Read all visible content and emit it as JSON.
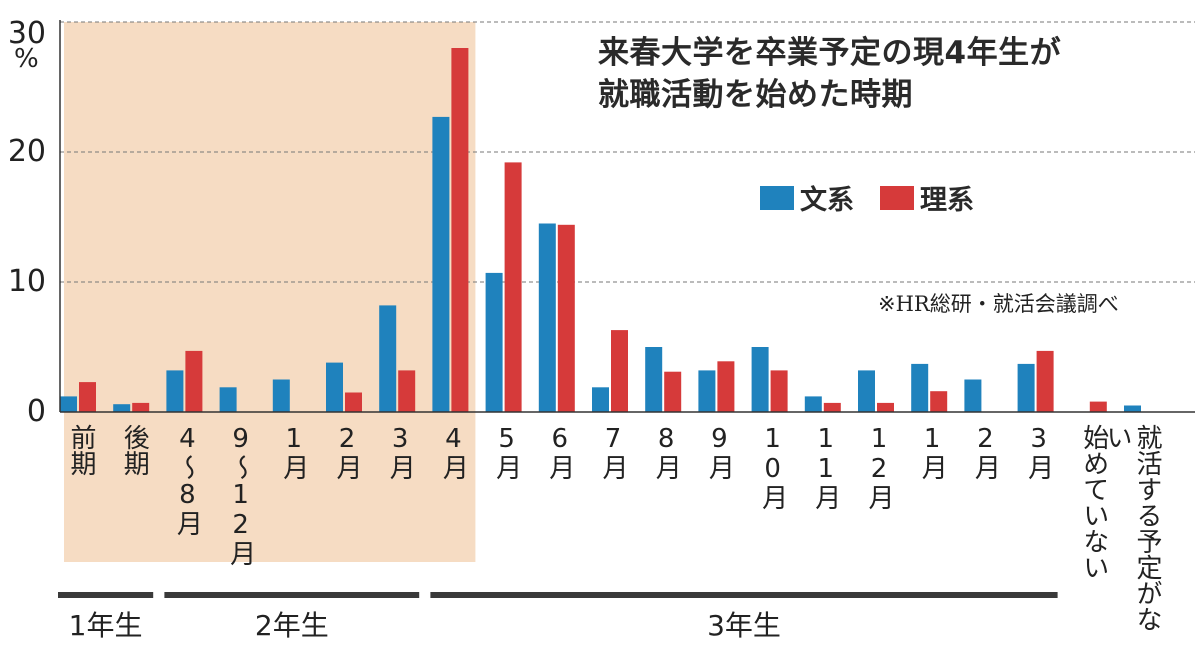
{
  "chart_data": {
    "type": "bar",
    "title": "来春大学を卒業予定の現4年生が就職活動を始めた時期",
    "source": "※HR総研・就活会議調べ",
    "y_unit": "%",
    "ylim": [
      0,
      30
    ],
    "yticks": [
      "0",
      "10",
      "20",
      "30"
    ],
    "grid": true,
    "legend_position": "upper-right",
    "categories": [
      "前期",
      "後期",
      "4~8月",
      "9~12月",
      "1月",
      "2月",
      "3月",
      "4月",
      "5月",
      "6月",
      "7月",
      "8月",
      "9月",
      "10月",
      "11月",
      "12月",
      "1月",
      "2月",
      "3月",
      "始めていない",
      "就活する予定がない"
    ],
    "category_labels": [
      "前期",
      "後期",
      "4〜8月",
      "9〜12月",
      "1月",
      "2月",
      "3月",
      "4月",
      "5月",
      "6月",
      "7月",
      "8月",
      "9月",
      "10月",
      "11月",
      "12月",
      "1月",
      "2月",
      "3月",
      "始めていない",
      "就活する予定がない"
    ],
    "series": [
      {
        "name": "文系",
        "color": "#1f82bd",
        "values": [
          1.2,
          0.6,
          3.2,
          1.9,
          2.5,
          3.8,
          8.2,
          22.7,
          10.7,
          14.5,
          1.9,
          5.0,
          3.2,
          5.0,
          1.2,
          3.2,
          3.7,
          2.5,
          3.7,
          0,
          0.5
        ]
      },
      {
        "name": "理系",
        "color": "#d63a3a",
        "values": [
          2.3,
          0.7,
          4.7,
          0,
          0,
          1.5,
          3.2,
          28.0,
          19.2,
          14.4,
          6.3,
          3.1,
          3.9,
          3.2,
          0.7,
          0.7,
          1.6,
          0,
          4.7,
          0.8,
          0
        ]
      }
    ],
    "highlight": {
      "from_category": 0,
      "to_category": 7,
      "color": "#f6dcc3"
    },
    "groups": [
      {
        "label": "1年生",
        "from_category": 0,
        "to_category": 1
      },
      {
        "label": "2年生",
        "from_category": 2,
        "to_category": 6
      },
      {
        "label": "3年生",
        "from_category": 7,
        "to_category": 18
      }
    ]
  },
  "legend": {
    "bunkei": "文系",
    "rikei": "理系"
  }
}
